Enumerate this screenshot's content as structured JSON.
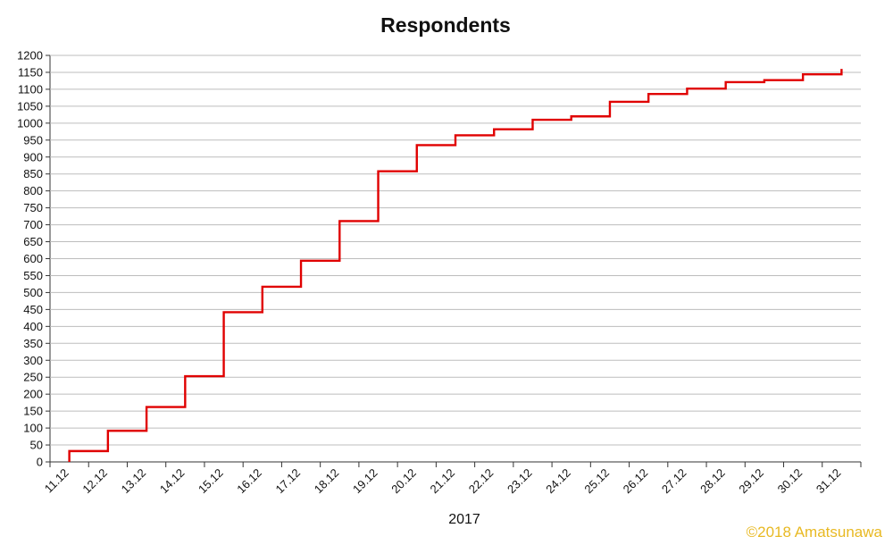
{
  "chart_data": {
    "type": "line",
    "title": "Respondents",
    "xlabel": "2017",
    "ylabel": "",
    "ylim": [
      0,
      1200
    ],
    "yticks": [
      0,
      50,
      100,
      150,
      200,
      250,
      300,
      350,
      400,
      450,
      500,
      550,
      600,
      650,
      700,
      750,
      800,
      850,
      900,
      950,
      1000,
      1050,
      1100,
      1150,
      1200
    ],
    "categories": [
      "11.12",
      "12.12",
      "13.12",
      "14.12",
      "15.12",
      "16.12",
      "17.12",
      "18.12",
      "19.12",
      "20.12",
      "21.12",
      "22.12",
      "23.12",
      "24.12",
      "25.12",
      "26.12",
      "27.12",
      "28.12",
      "29.12",
      "30.12",
      "31.12"
    ],
    "series": [
      {
        "values": [
          32,
          92,
          162,
          253,
          442,
          517,
          594,
          711,
          858,
          935,
          964,
          982,
          1010,
          1020,
          1063,
          1086,
          1102,
          1121,
          1127,
          1144,
          1160
        ]
      }
    ],
    "step": true,
    "grid": true,
    "line_color": "#e00000",
    "grid_color": "#bdbdbd"
  },
  "credit": "©2018 Amatsunawa"
}
